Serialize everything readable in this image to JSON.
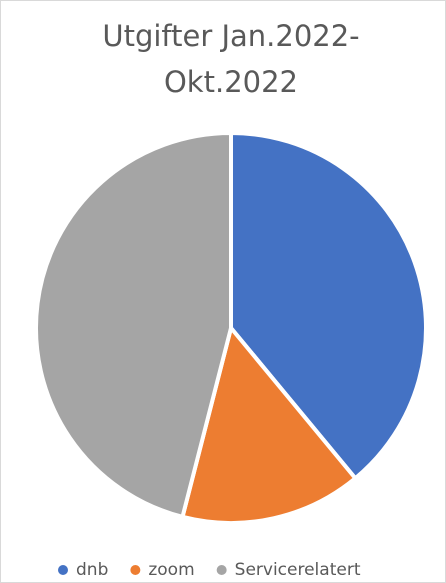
{
  "chart_data": {
    "type": "pie",
    "title": "Utgifter Jan.2022-Okt.2022",
    "categories": [
      "dnb",
      "zoom",
      "Servicerelatert"
    ],
    "values": [
      39,
      15,
      46
    ],
    "colors": [
      "#4472c4",
      "#ed7d31",
      "#a5a5a5"
    ],
    "legend": "bottom"
  }
}
